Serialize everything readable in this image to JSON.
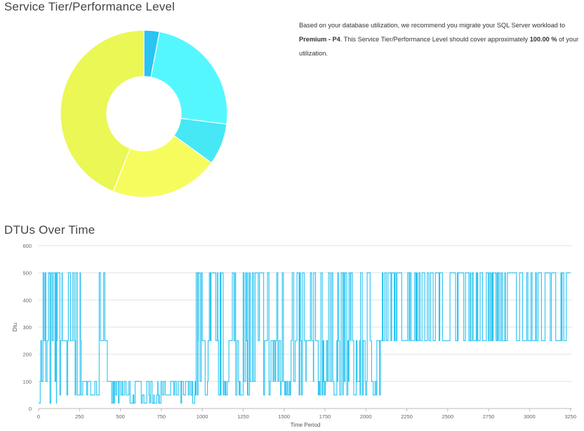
{
  "tier_section": {
    "title": "Service Tier/Performance Level",
    "recommendation": {
      "prefix": "Based on your database utilization, we recommend you migrate your SQL Server workload to ",
      "tier": "Premium - P4",
      "middle": ". This Service Tier/Performance Level should cover approximately ",
      "coverage": "100.00 %",
      "suffix": " of your utilization."
    }
  },
  "dtu_section": {
    "title": "DTUs Over Time"
  },
  "chart_data": [
    {
      "type": "pie",
      "donut": true,
      "values": [
        3,
        24,
        8,
        21,
        44
      ],
      "colors": [
        "#29C4F2",
        "#55F7FF",
        "#45E8F4",
        "#F7FC5E",
        "#EAF755"
      ],
      "legend": "none"
    },
    {
      "type": "line",
      "xlabel": "Time Period",
      "ylabel": "Dtu",
      "xlim": [
        0,
        3260
      ],
      "ylim": [
        0,
        600
      ],
      "xticks": [
        0,
        250,
        500,
        750,
        1000,
        1250,
        1500,
        1750,
        2000,
        2250,
        2500,
        2750,
        3000,
        3250
      ],
      "yticks": [
        0,
        100,
        200,
        300,
        400,
        500,
        600
      ],
      "grid": true,
      "legend": "none",
      "color": "#29C4F2",
      "levels": [
        20,
        50,
        100,
        250,
        500
      ],
      "segments": [
        {
          "x": [
            0,
            110
          ],
          "pattern": "high",
          "levels": [
            20,
            100,
            250,
            500
          ]
        },
        {
          "x": [
            110,
            260
          ],
          "pattern": "high",
          "levels": [
            50,
            250,
            500
          ]
        },
        {
          "x": [
            260,
            370
          ],
          "pattern": "low",
          "levels": [
            50,
            100
          ]
        },
        {
          "x": [
            370,
            420
          ],
          "pattern": "high",
          "levels": [
            250,
            500
          ]
        },
        {
          "x": [
            420,
            960
          ],
          "pattern": "low",
          "levels": [
            20,
            50,
            100
          ]
        },
        {
          "x": [
            960,
            1280
          ],
          "pattern": "high",
          "levels": [
            50,
            100,
            250,
            500
          ]
        },
        {
          "x": [
            1280,
            1600
          ],
          "pattern": "high",
          "levels": [
            50,
            100,
            250,
            500
          ]
        },
        {
          "x": [
            1600,
            2100
          ],
          "pattern": "high",
          "levels": [
            50,
            100,
            250,
            500
          ]
        },
        {
          "x": [
            2100,
            3250
          ],
          "pattern": "high",
          "levels": [
            250,
            500
          ]
        }
      ]
    }
  ]
}
